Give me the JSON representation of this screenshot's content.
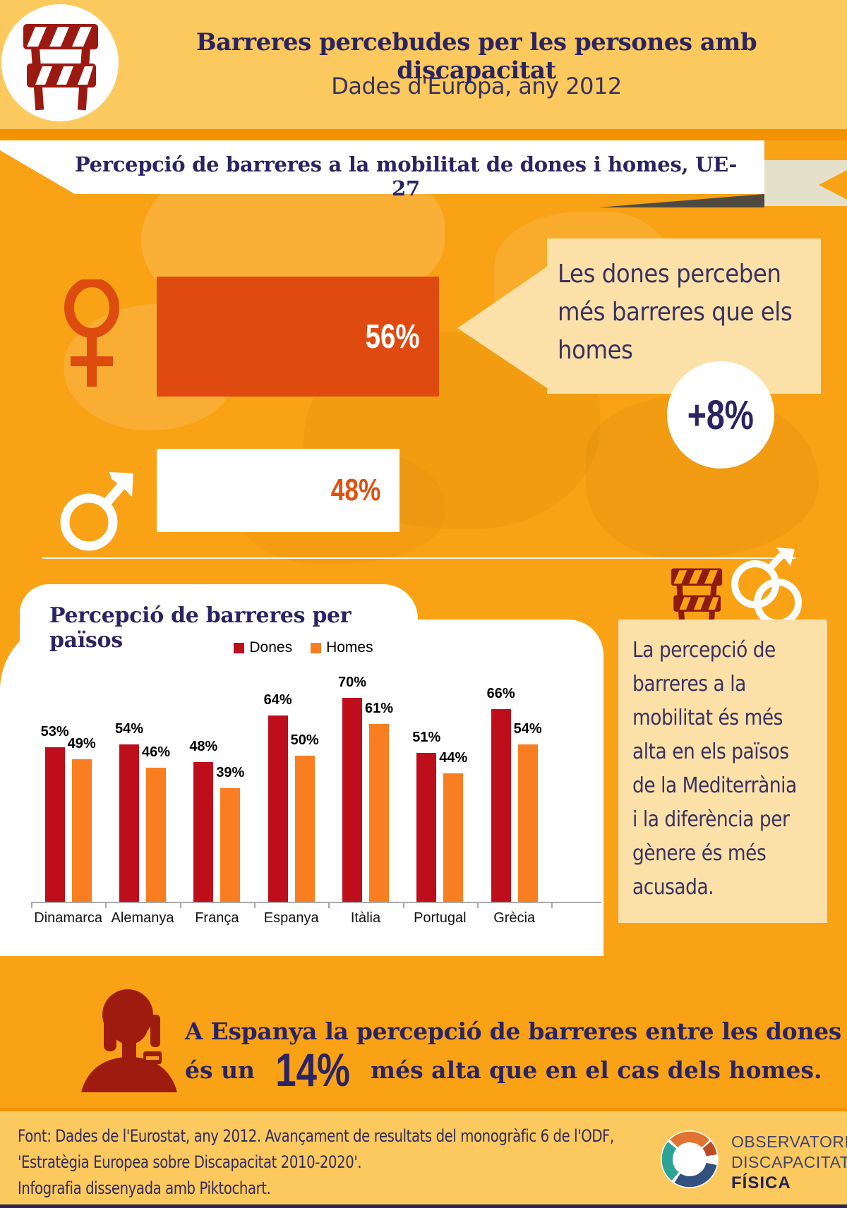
{
  "header": {
    "title": "Barreres percebudes per les persones amb discapacitat",
    "subtitle": "Dades d'Europa, any 2012"
  },
  "banner": {
    "title": "Percepció de barreres a la mobilitat de dones i homes, UE-27"
  },
  "hero": {
    "women_value": "56%",
    "men_value": "48%",
    "bubble_lines": [
      "Les dones perceben",
      "més barreres que els",
      "homes"
    ],
    "difference_badge": "+8%"
  },
  "chart": {
    "panel_title": "Percepció de barreres per països"
  },
  "chart_data": {
    "type": "bar",
    "title": "Percepció de barreres per països",
    "categories": [
      "Dinamarca",
      "Alemanya",
      "França",
      "Espanya",
      "Itàlia",
      "Portugal",
      "Grècia"
    ],
    "series": [
      {
        "name": "Dones",
        "color": "#BE0E1B",
        "values": [
          53,
          54,
          48,
          64,
          70,
          51,
          66
        ]
      },
      {
        "name": "Homes",
        "color": "#F97E21",
        "values": [
          49,
          46,
          39,
          50,
          61,
          44,
          54
        ]
      }
    ],
    "value_suffix": "%",
    "ylim": [
      0,
      75
    ],
    "grid": false,
    "legend_position": "top",
    "data_labels": true,
    "axis_color": "#A8A8A8"
  },
  "sidebar": {
    "lines": [
      "La percepció de",
      "barreres a la",
      "mobilitat és més",
      "alta en els països",
      "de la Mediterrània",
      "i la diferència per",
      "gènere és més",
      "acusada."
    ]
  },
  "spain_note": {
    "line1": "A Espanya la percepció de barreres entre les dones",
    "line2_prefix": "és un",
    "highlight": "14%",
    "line2_suffix": "més alta que en el cas dels homes."
  },
  "footer": {
    "source_lines": [
      "Font: Dades de l'Eurostat, any 2012. Avançament de resultats del monogràfic 6 de l'ODF,",
      "'Estratègia Europea sobre Discapacitat 2010-2020'.",
      "Infografia dissenyada amb Piktochart."
    ],
    "logo_lines": [
      "OBSERVATORI",
      "DISCAPACITAT",
      "FÍSICA"
    ]
  },
  "colors": {
    "page_bg": "#F9A215",
    "header_bg": "#FBC95E",
    "band": "#F29200",
    "hero_bar_red": "#DE4A10",
    "cream": "#FBE1A8",
    "ribbon": "#E5E0CA",
    "navy": "#2B2463",
    "dark_red_icon": "#9A1A12",
    "logo_teal": "#2FA496",
    "logo_orange": "#E07330",
    "logo_navy": "#32517E",
    "logo_rust": "#BC4B28"
  }
}
